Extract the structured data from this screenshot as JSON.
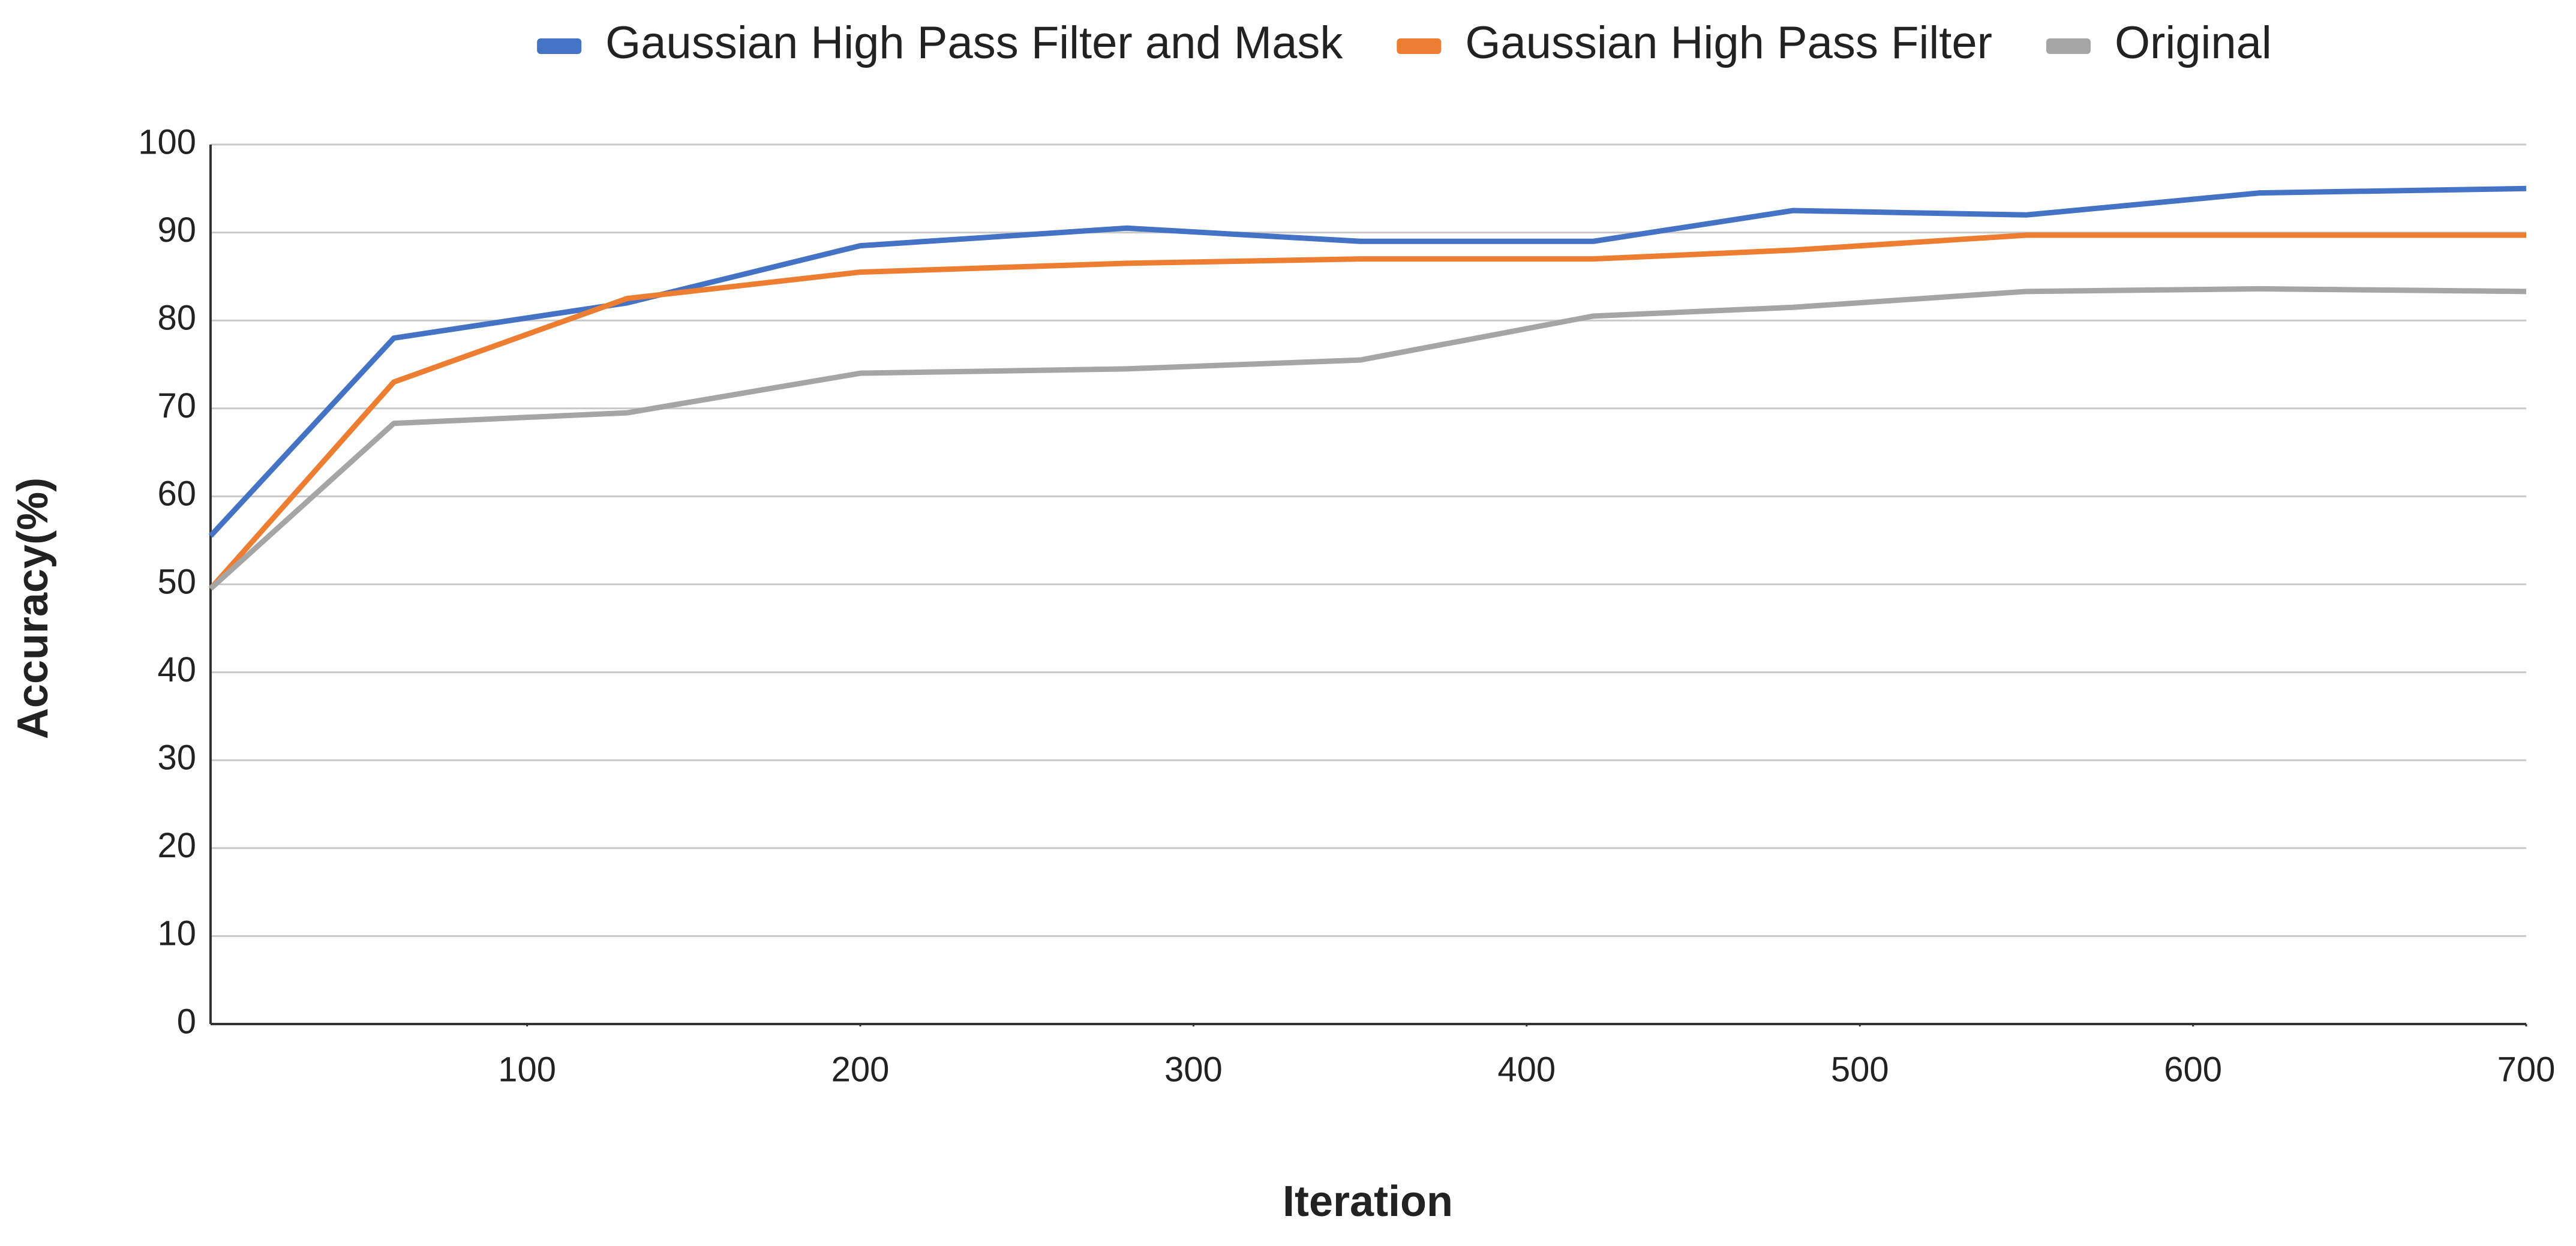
{
  "chart_data": {
    "type": "line",
    "x_label": "Iteration",
    "y_label": "Accuracy(%)",
    "x": [
      5,
      60,
      130,
      200,
      280,
      350,
      420,
      480,
      550,
      620,
      700
    ],
    "series": [
      {
        "name": "Gaussian High Pass Filter and Mask",
        "color": "#4472c4",
        "values": [
          55.5,
          78,
          82,
          88.5,
          90.5,
          89,
          89,
          92.5,
          92,
          94.5,
          95
        ]
      },
      {
        "name": "Gaussian High Pass Filter",
        "color": "#ed7d31",
        "values": [
          49.5,
          73,
          82.5,
          85.5,
          86.5,
          87,
          87,
          88,
          89.7,
          89.7,
          89.7
        ]
      },
      {
        "name": "Original",
        "color": "#a5a5a5",
        "values": [
          49.5,
          68.3,
          69.5,
          74,
          74.5,
          75.5,
          80.5,
          81.5,
          83.3,
          83.6,
          83.3
        ]
      }
    ],
    "xlim": [
      5,
      700
    ],
    "xticks": [
      100,
      200,
      300,
      400,
      500,
      600,
      700
    ],
    "ylim": [
      0,
      100
    ],
    "yticks": [
      0,
      10,
      20,
      30,
      40,
      50,
      60,
      70,
      80,
      90,
      100
    ],
    "grid": true,
    "legend": "top"
  }
}
